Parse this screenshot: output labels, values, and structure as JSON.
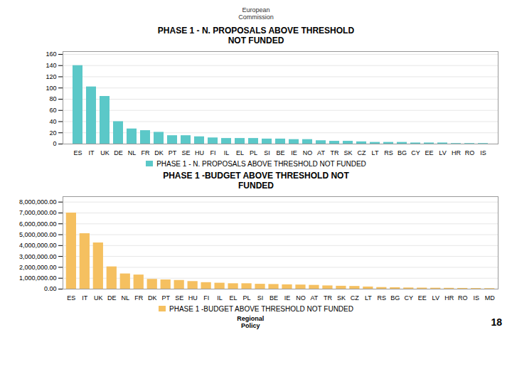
{
  "chart_data": [
    {
      "type": "bar",
      "title": "PHASE 1 - N. PROPOSALS ABOVE THRESHOLD\nNOT FUNDED",
      "categories": [
        "ES",
        "IT",
        "UK",
        "DE",
        "NL",
        "FR",
        "DK",
        "PT",
        "SE",
        "HU",
        "FI",
        "IL",
        "EL",
        "PL",
        "SI",
        "BE",
        "IE",
        "NO",
        "AT",
        "TR",
        "SK",
        "CZ",
        "LT",
        "RS",
        "BG",
        "CY",
        "EE",
        "LV",
        "HR",
        "RO",
        "IS"
      ],
      "series": [
        {
          "name": "PHASE 1 - N. PROPOSALS ABOVE THRESHOLD NOT FUNDED",
          "color": "#5BC8C8",
          "values": [
            140,
            102,
            85,
            40,
            27,
            24,
            21,
            15,
            15,
            13,
            11,
            10,
            10,
            10,
            9,
            9,
            8,
            8,
            6,
            5,
            5,
            4,
            3,
            3,
            3,
            2,
            2,
            2,
            1,
            1,
            1
          ]
        }
      ],
      "ylim": [
        0,
        165
      ],
      "yticks": [
        0,
        20,
        40,
        60,
        80,
        100,
        120,
        140,
        160
      ],
      "grid": true,
      "legend": "bottom",
      "annotations": [
        "European\nCommission"
      ]
    },
    {
      "type": "bar",
      "title": "PHASE 1 -BUDGET ABOVE THRESHOLD NOT\nFUNDED",
      "categories": [
        "ES",
        "IT",
        "UK",
        "DE",
        "NL",
        "FR",
        "DK",
        "PT",
        "SE",
        "HU",
        "FI",
        "IL",
        "EL",
        "PL",
        "SI",
        "BE",
        "IE",
        "NO",
        "AT",
        "TR",
        "SK",
        "CZ",
        "LT",
        "RS",
        "BG",
        "CY",
        "EE",
        "LV",
        "HR",
        "RO",
        "IS",
        "MD"
      ],
      "series": [
        {
          "name": "PHASE 1 -BUDGET ABOVE THRESHOLD NOT FUNDED",
          "color": "#F5C060",
          "values": [
            7000000,
            5100000,
            4250000,
            2050000,
            1400000,
            1300000,
            900000,
            850000,
            800000,
            700000,
            600000,
            550000,
            500000,
            500000,
            450000,
            430000,
            400000,
            380000,
            350000,
            300000,
            270000,
            250000,
            200000,
            150000,
            130000,
            110000,
            100000,
            90000,
            80000,
            70000,
            60000,
            50000
          ]
        }
      ],
      "ylim": [
        0,
        8500000
      ],
      "yticks": [
        {
          "value": 0,
          "label": "0.00"
        },
        {
          "value": 1000000,
          "label": "1,000,000.00"
        },
        {
          "value": 2000000,
          "label": "2,000,000.00"
        },
        {
          "value": 3000000,
          "label": "3,000,000.00"
        },
        {
          "value": 4000000,
          "label": "4,000,000.00"
        },
        {
          "value": 5000000,
          "label": "5,000,000.00"
        },
        {
          "value": 6000000,
          "label": "6,000,000.00"
        },
        {
          "value": 7000000,
          "label": "7,000,000.00"
        },
        {
          "value": 8000000,
          "label": "8,000,000.00"
        }
      ],
      "grid": true,
      "legend": "bottom",
      "annotations": [
        "Regional\nPolicy",
        "18"
      ]
    }
  ]
}
